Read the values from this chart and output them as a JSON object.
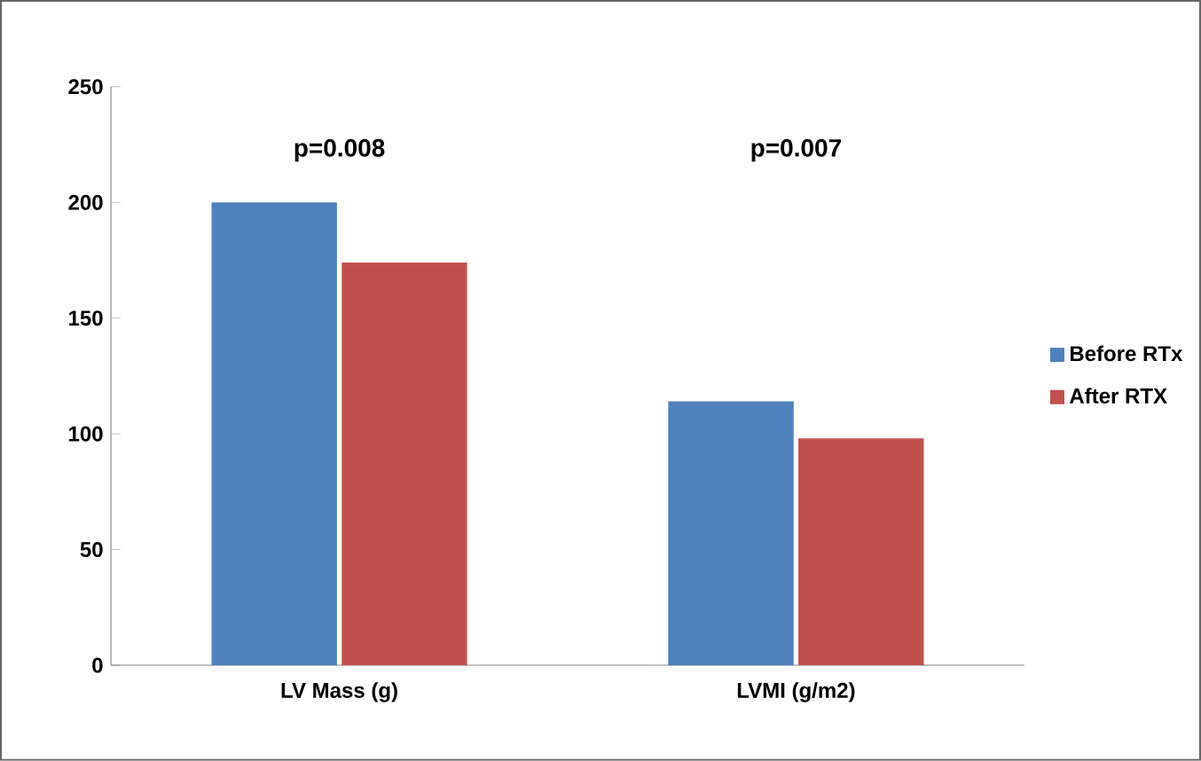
{
  "chart_data": {
    "type": "bar",
    "categories": [
      "LV Mass (g)",
      "LVMI (g/m2)"
    ],
    "series": [
      {
        "name": "Before RTx",
        "color": "#4f81bd",
        "values": [
          200,
          114
        ]
      },
      {
        "name": "After RTX",
        "color": "#c0504d",
        "values": [
          174,
          98
        ]
      }
    ],
    "ylim": [
      0,
      250
    ],
    "yticks": [
      0,
      50,
      100,
      150,
      200,
      250
    ],
    "legend": "right",
    "annotations": [
      "p=0.008",
      "p=0.007"
    ]
  }
}
